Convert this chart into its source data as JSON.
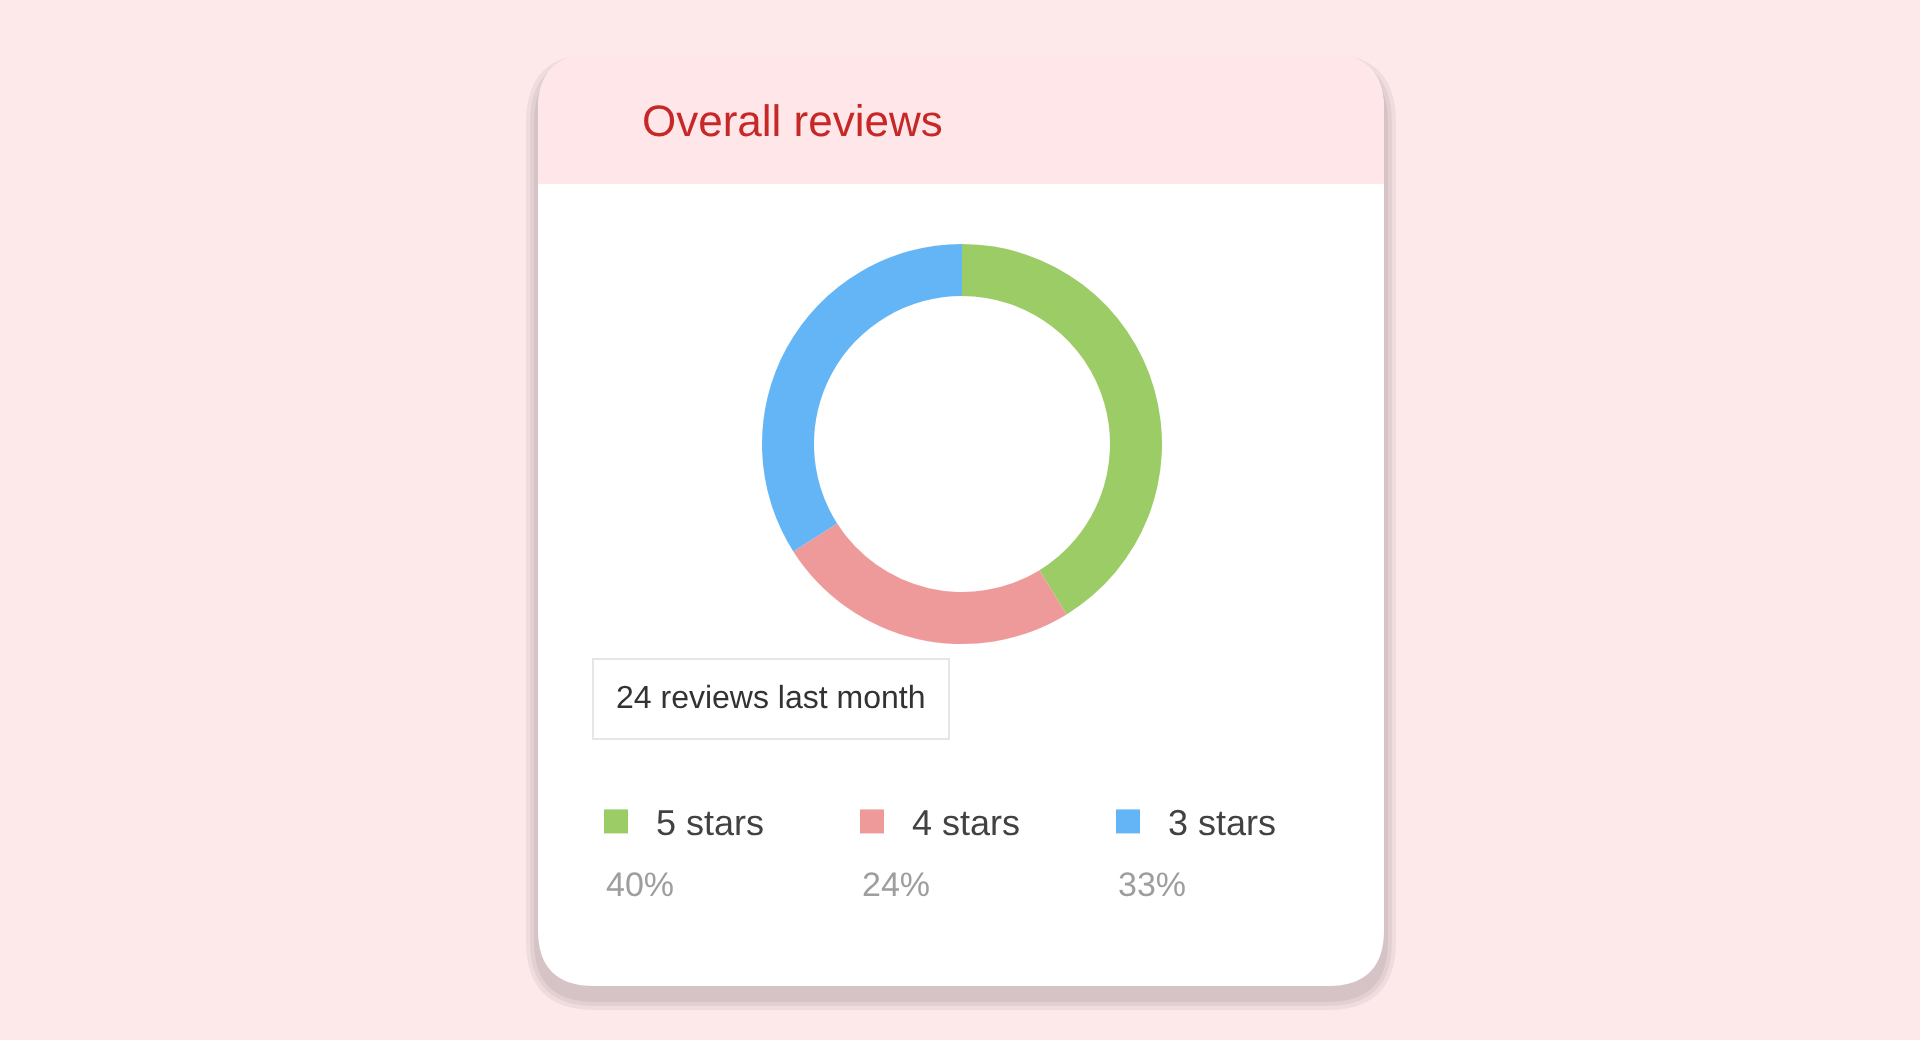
{
  "chart_data": {
    "type": "donut",
    "title": "Overall reviews",
    "categories": [
      "5 stars",
      "4 stars",
      "3 stars"
    ],
    "values": [
      40,
      24,
      33
    ],
    "colors": [
      "#9ccc65",
      "#ef9a9a",
      "#64b5f6"
    ],
    "value_labels": [
      "40%",
      "24%",
      "33%"
    ],
    "legend": "bottom",
    "annotations": [
      "24 reviews last month"
    ]
  }
}
